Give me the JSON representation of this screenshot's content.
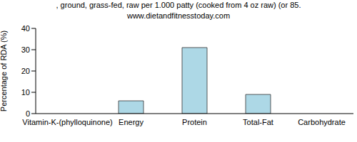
{
  "chart_data": {
    "type": "bar",
    "title": ", ground, grass-fed, raw per 1.000 patty (cooked from 4 oz raw) (or 85.",
    "subtitle": "www.dietandfitnesstoday.com",
    "y_label": "Percentage of RDA (%)",
    "categories": [
      "Vitamin-K-(phylloquinone)",
      "Energy",
      "Protein",
      "Total-Fat",
      "Carbohydrate"
    ],
    "values": [
      0,
      6,
      31,
      9,
      0
    ],
    "color": "#add8e6",
    "ylim": [
      0,
      40
    ],
    "yticks": [
      0,
      10,
      20,
      30,
      40
    ],
    "grid": false
  }
}
